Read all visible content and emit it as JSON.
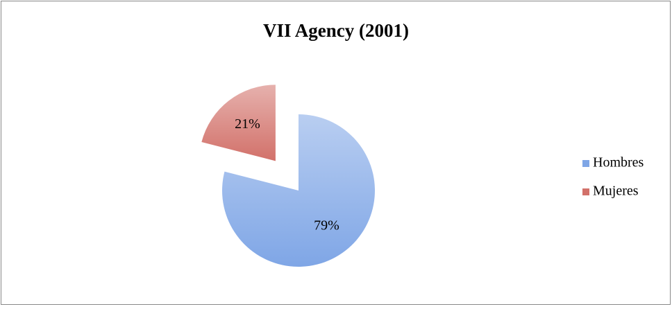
{
  "chart_data": {
    "type": "pie",
    "title": "VII Agency (2001)",
    "categories": [
      "Hombres",
      "Mujeres"
    ],
    "values": [
      79,
      21
    ],
    "value_labels": [
      "79%",
      "21%"
    ],
    "colors": [
      "#7fa6e6",
      "#d2716a"
    ],
    "legend": "right"
  }
}
